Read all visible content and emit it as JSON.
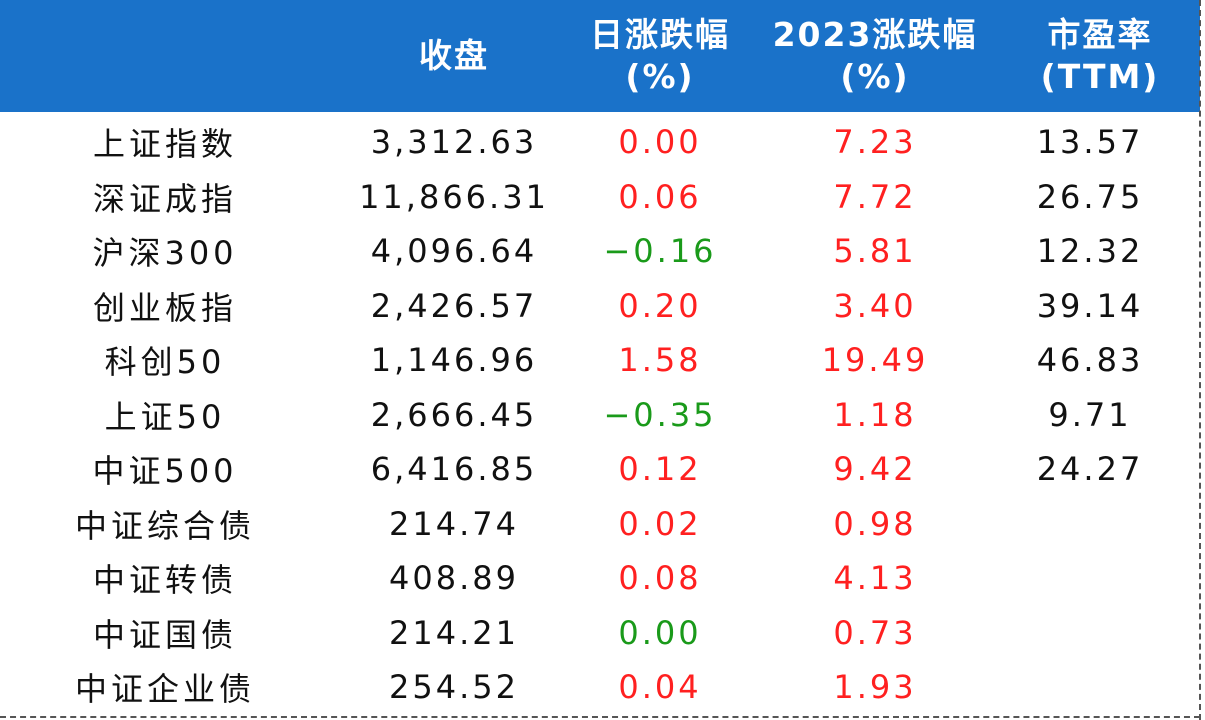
{
  "header": {
    "col_name": "",
    "col_close": "收盘",
    "col_daily_line1": "日涨跌幅",
    "col_daily_line2": "(%)",
    "col_ytd_line1": "2023涨跌幅",
    "col_ytd_line2": "(%)",
    "col_pe_line1": "市盈率",
    "col_pe_line2": "(TTM)"
  },
  "colors": {
    "header_bg": "#1a72c9",
    "up": "#ff2020",
    "down": "#1a9a1a"
  },
  "rows": [
    {
      "name": "上证指数",
      "close": "3,312.63",
      "daily": "0.00",
      "daily_dir": "up",
      "ytd": "7.23",
      "ytd_dir": "up",
      "pe": "13.57"
    },
    {
      "name": "深证成指",
      "close": "11,866.31",
      "daily": "0.06",
      "daily_dir": "up",
      "ytd": "7.72",
      "ytd_dir": "up",
      "pe": "26.75"
    },
    {
      "name": "沪深300",
      "close": "4,096.64",
      "daily": "−0.16",
      "daily_dir": "down",
      "ytd": "5.81",
      "ytd_dir": "up",
      "pe": "12.32"
    },
    {
      "name": "创业板指",
      "close": "2,426.57",
      "daily": "0.20",
      "daily_dir": "up",
      "ytd": "3.40",
      "ytd_dir": "up",
      "pe": "39.14"
    },
    {
      "name": "科创50",
      "close": "1,146.96",
      "daily": "1.58",
      "daily_dir": "up",
      "ytd": "19.49",
      "ytd_dir": "up",
      "pe": "46.83"
    },
    {
      "name": "上证50",
      "close": "2,666.45",
      "daily": "−0.35",
      "daily_dir": "down",
      "ytd": "1.18",
      "ytd_dir": "up",
      "pe": "9.71"
    },
    {
      "name": "中证500",
      "close": "6,416.85",
      "daily": "0.12",
      "daily_dir": "up",
      "ytd": "9.42",
      "ytd_dir": "up",
      "pe": "24.27"
    },
    {
      "name": "中证综合债",
      "close": "214.74",
      "daily": "0.02",
      "daily_dir": "up",
      "ytd": "0.98",
      "ytd_dir": "up",
      "pe": ""
    },
    {
      "name": "中证转债",
      "close": "408.89",
      "daily": "0.08",
      "daily_dir": "up",
      "ytd": "4.13",
      "ytd_dir": "up",
      "pe": ""
    },
    {
      "name": "中证国债",
      "close": "214.21",
      "daily": "0.00",
      "daily_dir": "down",
      "ytd": "0.73",
      "ytd_dir": "up",
      "pe": ""
    },
    {
      "name": "中证企业债",
      "close": "254.52",
      "daily": "0.04",
      "daily_dir": "up",
      "ytd": "1.93",
      "ytd_dir": "up",
      "pe": ""
    }
  ]
}
